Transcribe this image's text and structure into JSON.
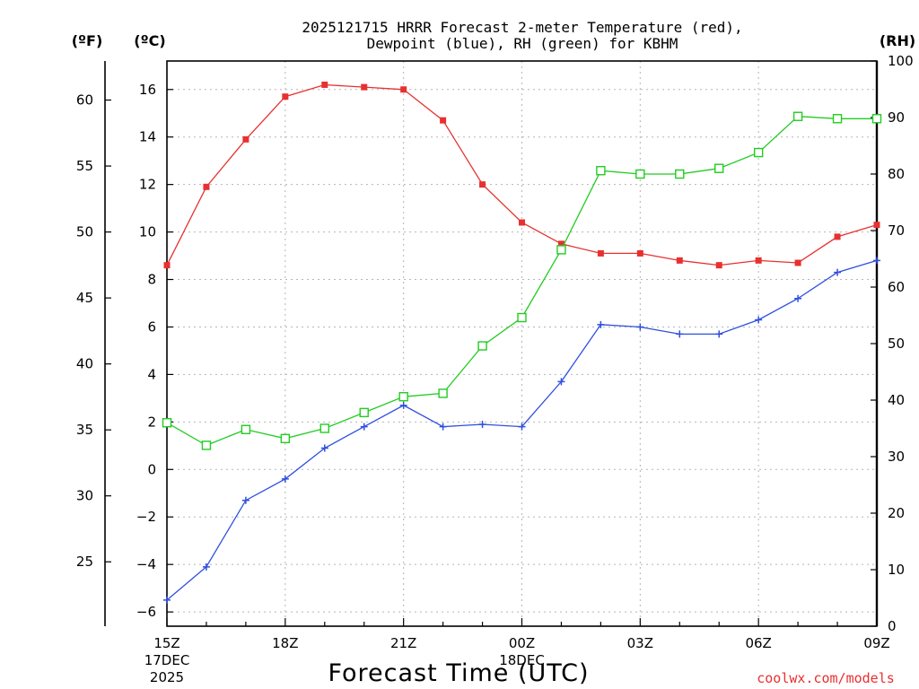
{
  "chart_data": {
    "type": "line",
    "title_line1": "2025121715 HRRR Forecast 2-meter Temperature (red),",
    "title_line2": "Dewpoint (blue), RH (green) for KBHM",
    "xlabel": "Forecast Time (UTC)",
    "credit": "coolwx.com/models",
    "unit_f": "(ºF)",
    "unit_c": "(ºC)",
    "unit_rh": "(RH)",
    "x_categories": [
      "15Z",
      "16Z",
      "17Z",
      "18Z",
      "19Z",
      "20Z",
      "21Z",
      "22Z",
      "23Z",
      "00Z",
      "01Z",
      "02Z",
      "03Z",
      "04Z",
      "05Z",
      "06Z",
      "07Z",
      "08Z",
      "09Z"
    ],
    "x_tick_labels": [
      {
        "index": 0,
        "label": "15Z",
        "sub1": "17DEC",
        "sub2": "2025"
      },
      {
        "index": 3,
        "label": "18Z"
      },
      {
        "index": 6,
        "label": "21Z"
      },
      {
        "index": 9,
        "label": "00Z",
        "sub1": "18DEC"
      },
      {
        "index": 12,
        "label": "03Z"
      },
      {
        "index": 15,
        "label": "06Z"
      },
      {
        "index": 18,
        "label": "09Z"
      }
    ],
    "celsius_axis": {
      "ylim": [
        -6.6,
        17.2
      ],
      "ticks": [
        -6,
        -4,
        -2,
        0,
        2,
        4,
        6,
        8,
        10,
        12,
        14,
        16
      ]
    },
    "fahrenheit_axis": {
      "ticks": [
        25,
        30,
        35,
        40,
        45,
        50,
        55,
        60
      ]
    },
    "rh_axis": {
      "ylim": [
        0,
        100
      ],
      "ticks": [
        0,
        10,
        20,
        30,
        40,
        50,
        60,
        70,
        80,
        90,
        100
      ]
    },
    "series": [
      {
        "name": "Temperature",
        "color": "#e83030",
        "marker": "filled-square",
        "axis": "celsius",
        "values": [
          8.6,
          11.9,
          13.9,
          15.7,
          16.2,
          16.1,
          16.0,
          14.7,
          12.0,
          10.4,
          9.5,
          9.1,
          9.1,
          8.8,
          8.6,
          8.8,
          8.7,
          9.8,
          10.3
        ]
      },
      {
        "name": "Dewpoint",
        "color": "#2f4fe0",
        "marker": "plus",
        "axis": "celsius",
        "values": [
          -5.5,
          -4.1,
          -1.3,
          -0.4,
          0.9,
          1.8,
          2.7,
          1.8,
          1.9,
          1.8,
          3.7,
          6.1,
          6.0,
          5.7,
          5.7,
          6.3,
          7.2,
          8.3,
          8.8
        ]
      },
      {
        "name": "RH",
        "color": "#22cc22",
        "marker": "open-square",
        "axis": "rh",
        "values": [
          36.0,
          32.0,
          34.8,
          33.2,
          35.0,
          37.8,
          40.6,
          41.2,
          49.6,
          54.6,
          66.6,
          80.6,
          80.0,
          80.0,
          81.0,
          83.8,
          90.2,
          89.8,
          89.8
        ]
      }
    ],
    "grid": true
  }
}
